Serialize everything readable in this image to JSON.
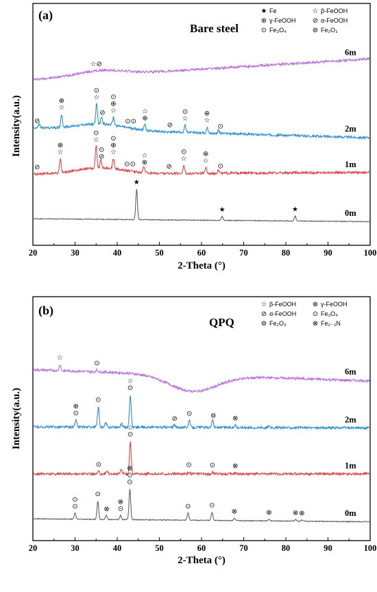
{
  "chart_data": [
    {
      "type": "line",
      "panel_label": "(a)",
      "title": "Bare steel",
      "xlabel": "2-Theta (°)",
      "ylabel": "Intensity(a.u.)",
      "xlim": [
        20,
        100
      ],
      "x_ticks": [
        20,
        30,
        40,
        50,
        60,
        70,
        80,
        90,
        100
      ],
      "legend_position": "top-right",
      "legend": [
        {
          "symbol": "★",
          "label": "Fe"
        },
        {
          "symbol": "☆",
          "label": "β-FeOOH"
        },
        {
          "symbol": "⊕",
          "label": "γ-FeOOH"
        },
        {
          "symbol": "⊘",
          "label": "α-FeOOH"
        },
        {
          "symbol": "⊙",
          "label": "Fe₃O₄"
        },
        {
          "symbol": "⊚",
          "label": "Fe₂O₃"
        }
      ],
      "series": [
        {
          "name": "6m",
          "color": "#b96fd8",
          "baseline_start": 0.805,
          "baseline_end": 0.91,
          "hump_at": 36,
          "hump_height": 0.025,
          "peaks": [],
          "markers": [
            {
              "x": 35,
              "stack": [
                "☆⊘"
              ]
            }
          ]
        },
        {
          "name": "2m",
          "color": "#2b8fd6",
          "baseline_start": 0.56,
          "baseline_end": 0.51,
          "hump_at": 36,
          "hump_height": 0.03,
          "peaks": [
            [
              21.5,
              0.02
            ],
            [
              26.8,
              0.065
            ],
            [
              35.1,
              0.1
            ],
            [
              36.3,
              0.04
            ],
            [
              39.1,
              0.04
            ],
            [
              46.5,
              0.03
            ],
            [
              56.1,
              0.035
            ],
            [
              61.3,
              0.03
            ],
            [
              64.0,
              0.015
            ]
          ],
          "markers": [
            {
              "x": 21.0,
              "stack": [
                "⊘"
              ]
            },
            {
              "x": 26.8,
              "stack": [
                "⊕",
                "☆"
              ]
            },
            {
              "x": 35.1,
              "stack": [
                "⊙",
                "☆"
              ]
            },
            {
              "x": 36.5,
              "stack": [
                "⊘"
              ]
            },
            {
              "x": 39.1,
              "stack": [
                "⊙",
                "⊕",
                "☆"
              ]
            },
            {
              "x": 43.2,
              "stack": [
                "⊙⊙"
              ]
            },
            {
              "x": 46.6,
              "stack": [
                "☆",
                "⊕"
              ]
            },
            {
              "x": 52.5,
              "stack": [
                "⊘"
              ]
            },
            {
              "x": 56.1,
              "stack": [
                "⊙",
                "☆"
              ]
            },
            {
              "x": 61.3,
              "stack": [
                "⊕",
                "☆"
              ]
            },
            {
              "x": 64.5,
              "stack": [
                "⊙"
              ]
            }
          ]
        },
        {
          "name": "1m",
          "color": "#e04545",
          "baseline_start": 0.325,
          "baseline_end": 0.335,
          "hump_at": 36,
          "hump_height": 0.03,
          "peaks": [
            [
              26.5,
              0.07
            ],
            [
              35.0,
              0.11
            ],
            [
              36.1,
              0.04
            ],
            [
              39.1,
              0.05
            ],
            [
              46.3,
              0.03
            ],
            [
              55.8,
              0.04
            ],
            [
              61.0,
              0.03
            ],
            [
              64.0,
              0.015
            ]
          ],
          "markers": [
            {
              "x": 21.0,
              "stack": [
                "⊘"
              ]
            },
            {
              "x": 26.5,
              "stack": [
                "⊕",
                "☆"
              ]
            },
            {
              "x": 35.0,
              "stack": [
                "⊙",
                "☆"
              ]
            },
            {
              "x": 36.3,
              "stack": [
                "⊙",
                "⊘"
              ]
            },
            {
              "x": 39.1,
              "stack": [
                "⊙",
                "⊕",
                "☆"
              ]
            },
            {
              "x": 43.0,
              "stack": [
                "⊙⊙"
              ]
            },
            {
              "x": 46.5,
              "stack": [
                "☆",
                "⊕"
              ]
            },
            {
              "x": 52.3,
              "stack": [
                "⊘"
              ]
            },
            {
              "x": 55.8,
              "stack": [
                "⊙",
                "☆"
              ]
            },
            {
              "x": 61.0,
              "stack": [
                "⊕",
                "☆"
              ]
            },
            {
              "x": 64.5,
              "stack": [
                "⊙"
              ]
            }
          ]
        },
        {
          "name": "0m",
          "color": "#606060",
          "baseline_start": 0.1,
          "baseline_end": 0.085,
          "hump_at": 36,
          "hump_height": 0,
          "peaks": [
            [
              44.6,
              0.155
            ],
            [
              64.9,
              0.02
            ],
            [
              82.2,
              0.025
            ]
          ],
          "markers": [
            {
              "x": 44.6,
              "stack": [
                "★"
              ]
            },
            {
              "x": 64.9,
              "stack": [
                "★"
              ]
            },
            {
              "x": 82.2,
              "stack": [
                "★"
              ]
            }
          ]
        }
      ]
    },
    {
      "type": "line",
      "panel_label": "(b)",
      "title": "QPQ",
      "xlabel": "2-Theta (°)",
      "ylabel": "Intensity(a.u.)",
      "xlim": [
        20,
        100
      ],
      "x_ticks": [
        20,
        30,
        40,
        50,
        60,
        70,
        80,
        90,
        100
      ],
      "legend_position": "top-right",
      "legend": [
        {
          "symbol": "☆",
          "label": "β-FeOOH"
        },
        {
          "symbol": "⊕",
          "label": "γ-FeOOH"
        },
        {
          "symbol": "⊘",
          "label": "α-FeOOH"
        },
        {
          "symbol": "⊙",
          "label": "Fe₃O₄"
        },
        {
          "symbol": "⊚",
          "label": "Fe₂O₃"
        },
        {
          "symbol": "⊗",
          "label": "Fe₂₋₃N"
        }
      ],
      "series": [
        {
          "name": "6m",
          "color": "#b96fd8",
          "baseline_start": 0.8,
          "baseline_end": 0.745,
          "hump_at": 58,
          "hump_height": -0.08,
          "peaks": [
            [
              26.4,
              0.03
            ],
            [
              35.2,
              0.01
            ]
          ],
          "markers": [
            {
              "x": 26.4,
              "stack": [
                "☆"
              ]
            },
            {
              "x": 35.2,
              "stack": [
                "⊙"
              ]
            }
          ]
        },
        {
          "name": "2m",
          "color": "#2b8fd6",
          "baseline_start": 0.52,
          "baseline_end": 0.515,
          "hump_at": 36,
          "hump_height": 0,
          "peaks": [
            [
              30.2,
              0.035
            ],
            [
              35.5,
              0.1
            ],
            [
              37.3,
              0.02
            ],
            [
              41.0,
              0.018
            ],
            [
              43.1,
              0.16
            ],
            [
              53.5,
              0.01
            ],
            [
              57.1,
              0.035
            ],
            [
              62.6,
              0.04
            ],
            [
              68.0,
              0.012
            ],
            [
              76.0,
              0.008
            ]
          ],
          "markers": [
            {
              "x": 30.2,
              "stack": [
                "⊕",
                "⊙"
              ]
            },
            {
              "x": 35.5,
              "stack": [
                "⊙"
              ]
            },
            {
              "x": 43.1,
              "stack": [
                "☆",
                "⊙"
              ]
            },
            {
              "x": 53.6,
              "stack": [
                "⊘"
              ]
            },
            {
              "x": 57.1,
              "stack": [
                "⊙"
              ]
            },
            {
              "x": 62.8,
              "stack": [
                "⊚"
              ]
            },
            {
              "x": 68.0,
              "stack": [
                "⊗"
              ]
            }
          ]
        },
        {
          "name": "1m",
          "color": "#e04545",
          "baseline_start": 0.29,
          "baseline_end": 0.29,
          "hump_at": 36,
          "hump_height": 0,
          "peaks": [
            [
              35.6,
              0.012
            ],
            [
              37.6,
              0.016
            ],
            [
              41.0,
              0.02
            ],
            [
              43.1,
              0.16
            ],
            [
              57.0,
              0.01
            ],
            [
              62.6,
              0.008
            ],
            [
              68.0,
              0.005
            ]
          ],
          "markers": [
            {
              "x": 35.6,
              "stack": [
                "⊙"
              ]
            },
            {
              "x": 43.1,
              "stack": [
                "☆",
                "⊙"
              ]
            },
            {
              "x": 57.0,
              "stack": [
                "⊙"
              ]
            },
            {
              "x": 62.6,
              "stack": [
                "⊙"
              ]
            },
            {
              "x": 68.0,
              "stack": [
                "⊗"
              ]
            }
          ]
        },
        {
          "name": "0m",
          "color": "#606060",
          "baseline_start": 0.07,
          "baseline_end": 0.055,
          "hump_at": 36,
          "hump_height": 0,
          "peaks": [
            [
              30.0,
              0.03
            ],
            [
              35.4,
              0.09
            ],
            [
              37.4,
              0.02
            ],
            [
              40.8,
              0.02
            ],
            [
              43.0,
              0.15
            ],
            [
              56.8,
              0.035
            ],
            [
              62.5,
              0.04
            ],
            [
              67.8,
              0.012
            ],
            [
              76.0,
              0.008
            ],
            [
              82.3,
              0.008
            ],
            [
              83.8,
              0.006
            ]
          ],
          "markers": [
            {
              "x": 30.0,
              "stack": [
                "⊙",
                "⊙"
              ]
            },
            {
              "x": 35.4,
              "stack": [
                "⊙"
              ]
            },
            {
              "x": 37.5,
              "stack": [
                "⊗"
              ]
            },
            {
              "x": 40.8,
              "stack": [
                "⊗",
                "⊙"
              ]
            },
            {
              "x": 43.0,
              "stack": [
                "⊗",
                "⊙",
                "⊙"
              ]
            },
            {
              "x": 56.8,
              "stack": [
                "⊙"
              ]
            },
            {
              "x": 62.5,
              "stack": [
                "⊙"
              ]
            },
            {
              "x": 67.8,
              "stack": [
                "⊗"
              ]
            },
            {
              "x": 76.0,
              "stack": [
                "⊗"
              ]
            },
            {
              "x": 82.3,
              "stack": [
                "⊗"
              ]
            },
            {
              "x": 83.8,
              "stack": [
                "⊗"
              ]
            }
          ]
        }
      ]
    }
  ]
}
